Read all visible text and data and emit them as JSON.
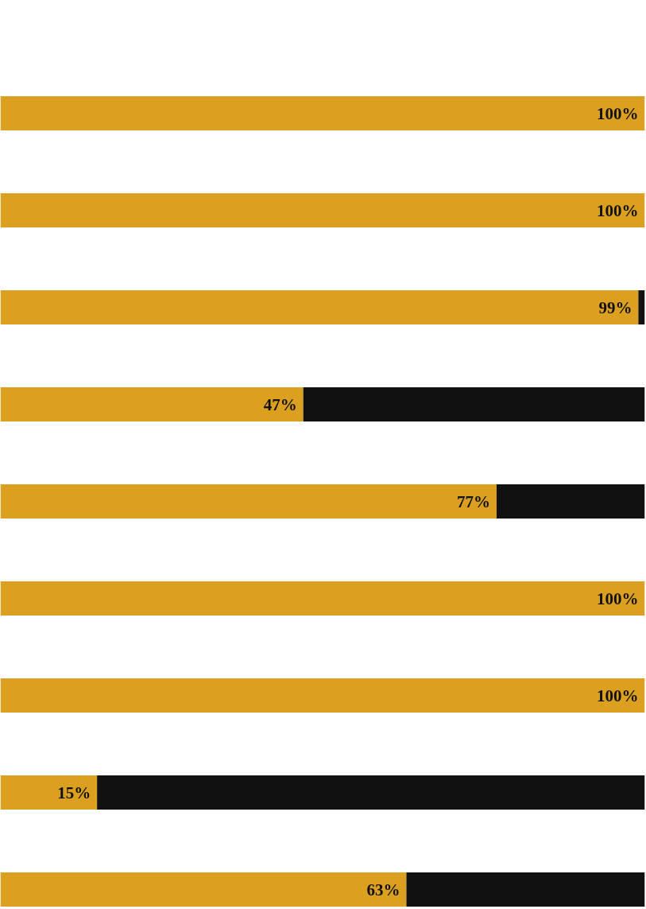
{
  "chart_data": {
    "type": "bar",
    "orientation": "horizontal",
    "stacked": true,
    "categories": [
      null,
      null,
      null,
      null,
      null,
      null,
      null,
      null,
      null
    ],
    "xlim": [
      0,
      100
    ],
    "tick_labels": false,
    "series": [
      {
        "color": "#dca020",
        "values": [
          100,
          100,
          99,
          47,
          77,
          100,
          100,
          15,
          63
        ],
        "value_labels": [
          "100%",
          "100%",
          "99%",
          "47%",
          "77%",
          "100%",
          "100%",
          "15%",
          "63%"
        ]
      },
      {
        "color": "#111111",
        "values": [
          0,
          0,
          1,
          53,
          23,
          0,
          0,
          85,
          37
        ]
      }
    ]
  }
}
